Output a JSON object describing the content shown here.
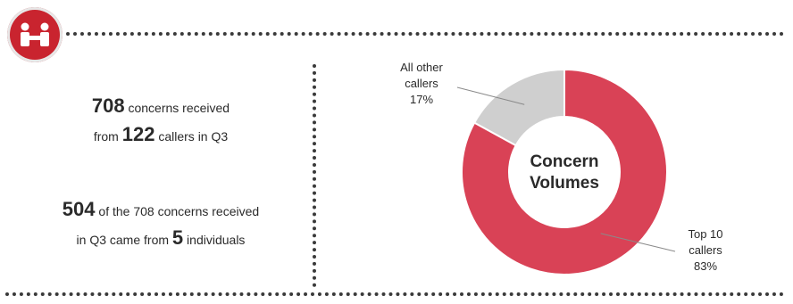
{
  "header": {
    "logo_icon": "people-handshake-icon",
    "accent": "#c9242f"
  },
  "stats": {
    "line1_num": "708",
    "line1_text": " concerns received",
    "line2_pre": "from ",
    "line2_num": "122",
    "line2_post": " callers in Q3",
    "line3_num": "504",
    "line3_text": " of the 708 concerns received",
    "line4_pre": "in Q3 came from ",
    "line4_num": "5",
    "line4_post": " individuals"
  },
  "chart_data": {
    "type": "pie",
    "variant": "donut",
    "center_label": [
      "Concern",
      "Volumes"
    ],
    "slices": [
      {
        "label": [
          "Top 10",
          "callers"
        ],
        "value": 83,
        "display": "83%",
        "color": "#d94256"
      },
      {
        "label": [
          "All other",
          "callers"
        ],
        "value": 17,
        "display": "17%",
        "color": "#cfcfcf"
      }
    ]
  }
}
